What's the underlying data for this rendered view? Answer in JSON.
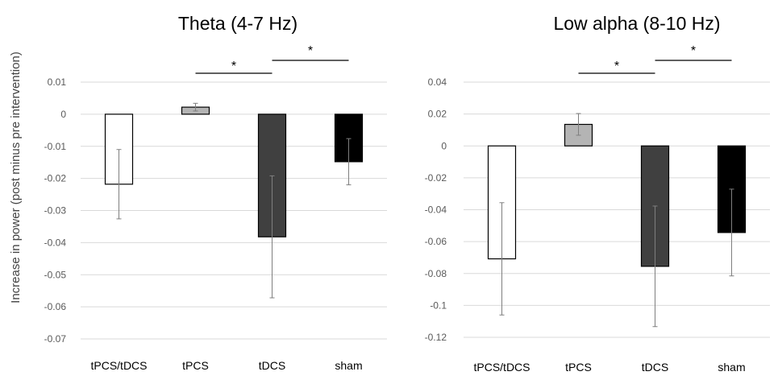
{
  "figure": {
    "shared_ylabel": "Increase in power (post minus pre intervention)"
  },
  "chart_data": [
    {
      "type": "bar",
      "title": "Theta (4-7 Hz)",
      "xlabel": "",
      "ylabel": "Increase in power (post minus pre intervention)",
      "categories": [
        "tPCS/tDCS",
        "tPCS",
        "tDCS",
        "sham"
      ],
      "values": [
        -0.0218,
        0.0022,
        -0.0382,
        -0.0148
      ],
      "errors": [
        0.0108,
        0.0012,
        0.019,
        0.0072
      ],
      "bar_colors": [
        "#ffffff",
        "#b4b4b4",
        "#404040",
        "#000000"
      ],
      "ylim": [
        -0.07,
        0.01
      ],
      "yticks": [
        0.01,
        0,
        -0.01,
        -0.02,
        -0.03,
        -0.04,
        -0.05,
        -0.06,
        -0.07
      ],
      "ytick_labels": [
        "0.01",
        "0",
        "-0.01",
        "-0.02",
        "-0.03",
        "-0.04",
        "-0.05",
        "-0.06",
        "-0.07"
      ],
      "significance": [
        {
          "from": 1,
          "to": 2,
          "label": "*"
        },
        {
          "from": 2,
          "to": 3,
          "label": "*"
        }
      ]
    },
    {
      "type": "bar",
      "title": "Low alpha (8-10 Hz)",
      "xlabel": "",
      "ylabel": "",
      "categories": [
        "tPCS/tDCS",
        "tPCS",
        "tDCS",
        "sham"
      ],
      "values": [
        -0.0708,
        0.0135,
        -0.0755,
        -0.0543
      ],
      "errors": [
        0.0352,
        0.0068,
        0.0378,
        0.0272
      ],
      "bar_colors": [
        "#ffffff",
        "#b4b4b4",
        "#404040",
        "#000000"
      ],
      "ylim": [
        -0.12,
        0.04
      ],
      "yticks": [
        0.04,
        0.02,
        0,
        -0.02,
        -0.04,
        -0.06,
        -0.08,
        -0.1,
        -0.12
      ],
      "ytick_labels": [
        "0.04",
        "0.02",
        "0",
        "-0.02",
        "-0.04",
        "-0.06",
        "-0.08",
        "-0.1",
        "-0.12"
      ],
      "significance": [
        {
          "from": 1,
          "to": 2,
          "label": "*"
        },
        {
          "from": 2,
          "to": 3,
          "label": "*"
        }
      ]
    }
  ]
}
